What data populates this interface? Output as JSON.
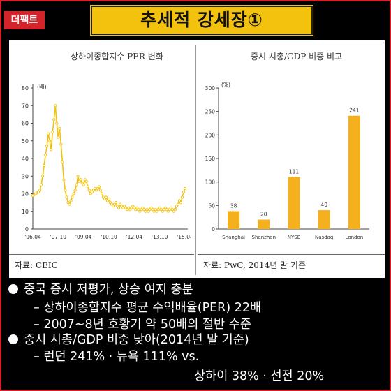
{
  "badge": {
    "logo": "더팩트"
  },
  "header": {
    "title": "추세적 강세장①"
  },
  "chart_data": [
    {
      "type": "line",
      "title": "상하이종합지수 PER 변화",
      "ylabel": "(배)",
      "ylim": [
        0,
        80
      ],
      "yticks": [
        0,
        10,
        20,
        30,
        40,
        50,
        60,
        70,
        80
      ],
      "xtick_labels": [
        "'06.04",
        "'07.10",
        "'09.04",
        "'10.10",
        "'12.04",
        "'13.10",
        "'15.04"
      ],
      "x_range": [
        0,
        108
      ],
      "color": "#f2c20e",
      "grid": false,
      "series": [
        {
          "x": [
            0,
            1,
            2,
            3,
            4,
            5,
            6,
            7,
            8,
            9,
            10,
            11,
            12,
            13,
            14,
            15,
            16,
            17,
            18,
            19,
            20,
            21,
            22,
            23,
            24,
            25,
            26,
            27,
            28,
            29,
            30,
            31,
            32,
            33,
            34,
            35,
            36,
            37,
            38,
            39,
            40,
            41,
            42,
            43,
            44,
            45,
            46,
            47,
            48,
            49,
            50,
            51,
            52,
            53,
            54,
            55,
            56,
            57,
            58,
            59,
            60,
            61,
            62,
            63,
            64,
            65,
            66,
            67,
            68,
            69,
            70,
            71,
            72,
            73,
            74,
            75,
            76,
            77,
            78,
            79,
            80,
            81,
            82,
            83,
            84,
            85,
            86,
            87,
            88,
            89,
            90,
            91,
            92,
            93,
            94,
            95,
            96,
            97,
            98,
            99,
            100,
            101,
            102,
            103,
            104,
            105,
            106,
            107,
            108
          ],
          "y": [
            19,
            19.5,
            20,
            20.5,
            21,
            22,
            25,
            30,
            36,
            42,
            47,
            54,
            50,
            45,
            55,
            62,
            70,
            60,
            52,
            57,
            48,
            38,
            28,
            22,
            18,
            15,
            14,
            16,
            18,
            20,
            22,
            25,
            30,
            27,
            28,
            26,
            25,
            28,
            27,
            24,
            22,
            20,
            21,
            22,
            23,
            22,
            23,
            24,
            22,
            20,
            18,
            17,
            18,
            16,
            17,
            15,
            14,
            13,
            14,
            15,
            13,
            12,
            14,
            13,
            12,
            13,
            12,
            11,
            12,
            11,
            12,
            13,
            12,
            11,
            12,
            11,
            10,
            11,
            12,
            11,
            10,
            11,
            10,
            11,
            12,
            11,
            10,
            11,
            10,
            11,
            12,
            11,
            10,
            11,
            12,
            11,
            10,
            11,
            12,
            11,
            10,
            11,
            13,
            14,
            16,
            15,
            18,
            21,
            23
          ]
        }
      ],
      "source": "자료: CEIC"
    },
    {
      "type": "bar",
      "title": "증시 시총/GDP 비중 비교",
      "ylabel": "(%)",
      "ylim": [
        0,
        300
      ],
      "yticks": [
        0,
        50,
        100,
        150,
        200,
        250,
        300
      ],
      "categories": [
        "Shanghai",
        "Shenzhen",
        "NYSE",
        "Nasdaq",
        "London"
      ],
      "values": [
        38,
        20,
        111,
        40,
        241
      ],
      "color": "#f5b01e",
      "grid": false,
      "source": "자료: PwC, 2014년 말 기준"
    }
  ],
  "bullets": [
    {
      "text": "중국 증시 저평가, 상승 여지 충분",
      "level": 1
    },
    {
      "text": "– 상하이종합지수 평균 수익배율(PER) 22배",
      "level": 2
    },
    {
      "text": "– 2007~8년 호황기  약 50배의 절반 수준",
      "level": 2
    },
    {
      "text": "중시 시총/GDP 비중 낮아(2014년 말 기준)",
      "level": 1
    },
    {
      "text": "– 런던 241% · 뉴욕 111% vs.",
      "level": 2
    },
    {
      "text": "상하이 38% · 선전 20%",
      "level": 3
    }
  ]
}
